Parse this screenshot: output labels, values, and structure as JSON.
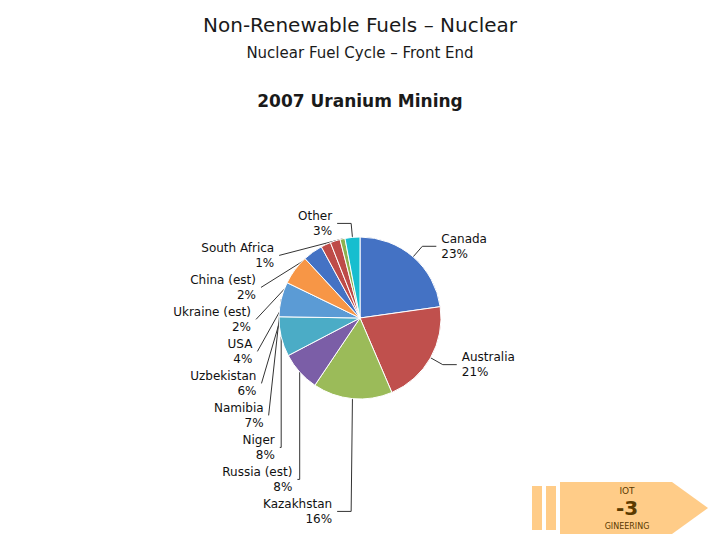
{
  "chart_data": {
    "type": "pie",
    "title": "Non-Renewable Fuels – Nuclear",
    "subtitle": "Nuclear Fuel Cycle – Front End",
    "annotations": [
      "2007 Uranium Mining",
      "IOT",
      "-3",
      "GINEERING"
    ],
    "categories": [
      "Canada",
      "Australia",
      "Kazakhstan",
      "Russia (est)",
      "Niger",
      "Namibia",
      "Uzbekistan",
      "USA",
      "Ukraine (est)",
      "China (est)",
      "South Africa",
      "Other"
    ],
    "values": [
      23,
      21,
      16,
      8,
      8,
      7,
      6,
      4,
      2,
      2,
      1,
      3
    ],
    "value_labels": [
      "23%",
      "21%",
      "16%",
      "8%",
      "8%",
      "7%",
      "6%",
      "4%",
      "2%",
      "2%",
      "1%",
      "3%"
    ],
    "colors": [
      "#4472C4",
      "#C0504D",
      "#9BBB59",
      "#7B5EA7",
      "#4BACC6",
      "#5B9BD5",
      "#F79646",
      "#4472C4",
      "#BE4B48",
      "#BE4B48",
      "#8DB14F",
      "#17BECF"
    ],
    "data_labels": true,
    "legend": false
  }
}
